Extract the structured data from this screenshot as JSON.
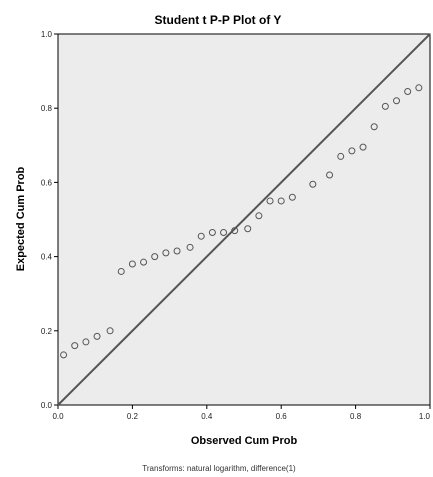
{
  "chart_data": {
    "type": "scatter",
    "title": "Student t P-P Plot of Y",
    "xlabel": "Observed Cum Prob",
    "ylabel": "Expected Cum Prob",
    "footnote": "Transforms: natural logarithm, difference(1)",
    "xlim": [
      0,
      1
    ],
    "ylim": [
      0,
      1
    ],
    "x_tick_labels": [
      "0.0",
      "0.2",
      "0.4",
      "0.6",
      "0.8",
      "1.0"
    ],
    "y_tick_labels": [
      "0.0",
      "0.2",
      "0.4",
      "0.6",
      "0.8",
      "1.0"
    ],
    "grid": false,
    "reference_line": {
      "from": [
        0,
        0
      ],
      "to": [
        1,
        1
      ]
    },
    "points": [
      {
        "x": 0.015,
        "y": 0.135
      },
      {
        "x": 0.045,
        "y": 0.16
      },
      {
        "x": 0.075,
        "y": 0.17
      },
      {
        "x": 0.105,
        "y": 0.185
      },
      {
        "x": 0.14,
        "y": 0.2
      },
      {
        "x": 0.17,
        "y": 0.36
      },
      {
        "x": 0.2,
        "y": 0.38
      },
      {
        "x": 0.23,
        "y": 0.385
      },
      {
        "x": 0.26,
        "y": 0.4
      },
      {
        "x": 0.29,
        "y": 0.41
      },
      {
        "x": 0.32,
        "y": 0.415
      },
      {
        "x": 0.355,
        "y": 0.425
      },
      {
        "x": 0.385,
        "y": 0.455
      },
      {
        "x": 0.415,
        "y": 0.465
      },
      {
        "x": 0.445,
        "y": 0.465
      },
      {
        "x": 0.475,
        "y": 0.47
      },
      {
        "x": 0.51,
        "y": 0.475
      },
      {
        "x": 0.54,
        "y": 0.51
      },
      {
        "x": 0.57,
        "y": 0.55
      },
      {
        "x": 0.6,
        "y": 0.55
      },
      {
        "x": 0.63,
        "y": 0.56
      },
      {
        "x": 0.685,
        "y": 0.595
      },
      {
        "x": 0.73,
        "y": 0.62
      },
      {
        "x": 0.76,
        "y": 0.67
      },
      {
        "x": 0.79,
        "y": 0.685
      },
      {
        "x": 0.82,
        "y": 0.695
      },
      {
        "x": 0.85,
        "y": 0.75
      },
      {
        "x": 0.88,
        "y": 0.805
      },
      {
        "x": 0.91,
        "y": 0.82
      },
      {
        "x": 0.94,
        "y": 0.845
      },
      {
        "x": 0.97,
        "y": 0.855
      }
    ]
  },
  "colors": {
    "plot_background": "#ececec",
    "marker_stroke": "#555555",
    "reference_line": "#555555",
    "axis": "#000000"
  }
}
